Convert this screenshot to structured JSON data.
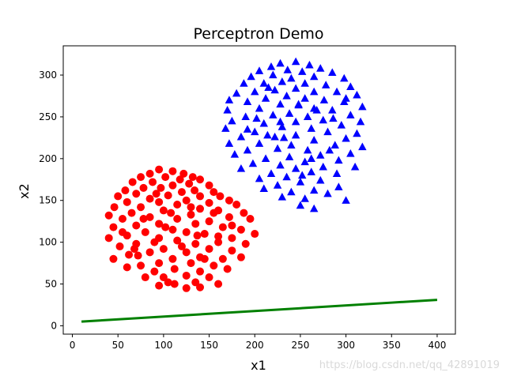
{
  "chart_data": {
    "type": "scatter",
    "title": "Perceptron Demo",
    "xlabel": "x1",
    "ylabel": "x2",
    "xlim": [
      -10,
      420
    ],
    "ylim": [
      -10,
      335
    ],
    "xticks": [
      0,
      50,
      100,
      150,
      200,
      250,
      300,
      350,
      400
    ],
    "yticks": [
      0,
      50,
      100,
      150,
      200,
      250,
      300
    ],
    "grid": false,
    "colors": {
      "class_red": "#ff0000",
      "class_blue": "#0000ff",
      "boundary": "#008000"
    },
    "series": [
      {
        "marker": "circle",
        "color": "#ff0000",
        "cluster": {
          "center": [
            115,
            117
          ],
          "radius": 72
        },
        "points": [
          [
            95,
            187
          ],
          [
            110,
            185
          ],
          [
            122,
            182
          ],
          [
            132,
            178
          ],
          [
            85,
            182
          ],
          [
            75,
            178
          ],
          [
            102,
            178
          ],
          [
            118,
            175
          ],
          [
            140,
            175
          ],
          [
            128,
            170
          ],
          [
            150,
            168
          ],
          [
            66,
            172
          ],
          [
            88,
            172
          ],
          [
            110,
            168
          ],
          [
            78,
            165
          ],
          [
            97,
            165
          ],
          [
            134,
            162
          ],
          [
            155,
            160
          ],
          [
            120,
            160
          ],
          [
            58,
            162
          ],
          [
            70,
            158
          ],
          [
            105,
            156
          ],
          [
            140,
            155
          ],
          [
            162,
            155
          ],
          [
            85,
            152
          ],
          [
            50,
            155
          ],
          [
            125,
            150
          ],
          [
            172,
            150
          ],
          [
            95,
            148
          ],
          [
            150,
            147
          ],
          [
            60,
            148
          ],
          [
            115,
            145
          ],
          [
            180,
            145
          ],
          [
            75,
            142
          ],
          [
            140,
            140
          ],
          [
            46,
            142
          ],
          [
            100,
            138
          ],
          [
            160,
            138
          ],
          [
            188,
            135
          ],
          [
            130,
            133
          ],
          [
            65,
            135
          ],
          [
            85,
            130
          ],
          [
            115,
            128
          ],
          [
            172,
            130
          ],
          [
            150,
            125
          ],
          [
            55,
            128
          ],
          [
            40,
            132
          ],
          [
            195,
            128
          ],
          [
            95,
            122
          ],
          [
            135,
            122
          ],
          [
            70,
            120
          ],
          [
            165,
            118
          ],
          [
            45,
            118
          ],
          [
            110,
            115
          ],
          [
            185,
            115
          ],
          [
            125,
            112
          ],
          [
            145,
            110
          ],
          [
            80,
            112
          ],
          [
            60,
            108
          ],
          [
            200,
            110
          ],
          [
            95,
            105
          ],
          [
            175,
            105
          ],
          [
            40,
            105
          ],
          [
            160,
            100
          ],
          [
            115,
            102
          ],
          [
            135,
            98
          ],
          [
            70,
            98
          ],
          [
            190,
            98
          ],
          [
            52,
            95
          ],
          [
            100,
            92
          ],
          [
            150,
            92
          ],
          [
            125,
            88
          ],
          [
            85,
            88
          ],
          [
            175,
            90
          ],
          [
            62,
            85
          ],
          [
            140,
            82
          ],
          [
            110,
            80
          ],
          [
            165,
            80
          ],
          [
            45,
            80
          ],
          [
            95,
            75
          ],
          [
            185,
            82
          ],
          [
            130,
            75
          ],
          [
            75,
            72
          ],
          [
            155,
            72
          ],
          [
            112,
            68
          ],
          [
            60,
            70
          ],
          [
            140,
            65
          ],
          [
            90,
            65
          ],
          [
            170,
            68
          ],
          [
            125,
            60
          ],
          [
            100,
            58
          ],
          [
            150,
            58
          ],
          [
            80,
            58
          ],
          [
            135,
            52
          ],
          [
            112,
            50
          ],
          [
            160,
            50
          ],
          [
            95,
            48
          ],
          [
            125,
            45
          ],
          [
            140,
            46
          ],
          [
            105,
            52
          ],
          [
            68,
            92
          ],
          [
            155,
            135
          ],
          [
            108,
            135
          ],
          [
            90,
            100
          ],
          [
            130,
            142
          ],
          [
            175,
            120
          ],
          [
            55,
            112
          ],
          [
            120,
            95
          ],
          [
            145,
            80
          ],
          [
            92,
            158
          ],
          [
            102,
            118
          ],
          [
            160,
            107
          ],
          [
            78,
            128
          ],
          [
            137,
            108
          ],
          [
            72,
            84
          ]
        ]
      },
      {
        "marker": "triangle",
        "color": "#0000ff",
        "cluster": {
          "center": [
            245,
            245
          ],
          "radius": 72
        },
        "points": [
          [
            245,
            316
          ],
          [
            228,
            314
          ],
          [
            260,
            312
          ],
          [
            218,
            310
          ],
          [
            272,
            308
          ],
          [
            236,
            306
          ],
          [
            252,
            304
          ],
          [
            205,
            305
          ],
          [
            285,
            303
          ],
          [
            220,
            300
          ],
          [
            265,
            298
          ],
          [
            240,
            296
          ],
          [
            196,
            298
          ],
          [
            298,
            296
          ],
          [
            230,
            292
          ],
          [
            255,
            290
          ],
          [
            210,
            290
          ],
          [
            278,
            288
          ],
          [
            188,
            290
          ],
          [
            305,
            286
          ],
          [
            245,
            284
          ],
          [
            222,
            282
          ],
          [
            265,
            280
          ],
          [
            200,
            280
          ],
          [
            290,
            280
          ],
          [
            180,
            278
          ],
          [
            312,
            276
          ],
          [
            235,
            275
          ],
          [
            255,
            272
          ],
          [
            212,
            272
          ],
          [
            276,
            270
          ],
          [
            192,
            268
          ],
          [
            298,
            268
          ],
          [
            172,
            270
          ],
          [
            228,
            265
          ],
          [
            248,
            264
          ],
          [
            318,
            262
          ],
          [
            265,
            260
          ],
          [
            205,
            260
          ],
          [
            285,
            258
          ],
          [
            170,
            258
          ],
          [
            238,
            254
          ],
          [
            220,
            252
          ],
          [
            305,
            252
          ],
          [
            258,
            250
          ],
          [
            190,
            250
          ],
          [
            275,
            246
          ],
          [
            175,
            245
          ],
          [
            316,
            244
          ],
          [
            245,
            244
          ],
          [
            210,
            242
          ],
          [
            295,
            240
          ],
          [
            230,
            238
          ],
          [
            262,
            236
          ],
          [
            168,
            236
          ],
          [
            200,
            232
          ],
          [
            280,
            232
          ],
          [
            312,
            230
          ],
          [
            245,
            228
          ],
          [
            222,
            226
          ],
          [
            185,
            226
          ],
          [
            300,
            224
          ],
          [
            265,
            222
          ],
          [
            205,
            218
          ],
          [
            172,
            218
          ],
          [
            240,
            216
          ],
          [
            288,
            216
          ],
          [
            318,
            214
          ],
          [
            225,
            212
          ],
          [
            258,
            210
          ],
          [
            192,
            210
          ],
          [
            305,
            206
          ],
          [
            178,
            205
          ],
          [
            272,
            204
          ],
          [
            238,
            202
          ],
          [
            212,
            200
          ],
          [
            292,
            198
          ],
          [
            255,
            196
          ],
          [
            198,
            194
          ],
          [
            228,
            192
          ],
          [
            275,
            190
          ],
          [
            245,
            188
          ],
          [
            310,
            190
          ],
          [
            185,
            188
          ],
          [
            262,
            184
          ],
          [
            218,
            182
          ],
          [
            290,
            182
          ],
          [
            235,
            178
          ],
          [
            205,
            176
          ],
          [
            272,
            174
          ],
          [
            250,
            172
          ],
          [
            225,
            168
          ],
          [
            292,
            166
          ],
          [
            210,
            164
          ],
          [
            265,
            162
          ],
          [
            240,
            160
          ],
          [
            280,
            158
          ],
          [
            230,
            154
          ],
          [
            255,
            152
          ],
          [
            300,
            150
          ],
          [
            250,
            144
          ],
          [
            265,
            140
          ],
          [
            252,
            180
          ],
          [
            232,
            225
          ],
          [
            268,
            258
          ],
          [
            202,
            248
          ],
          [
            282,
            210
          ],
          [
            215,
            285
          ],
          [
            300,
            272
          ],
          [
            192,
            235
          ],
          [
            248,
            265
          ],
          [
            262,
            200
          ],
          [
            228,
            244
          ],
          [
            286,
            248
          ],
          [
            214,
            228
          ]
        ]
      }
    ],
    "line": {
      "x": [
        10,
        400
      ],
      "y": [
        5,
        31
      ]
    }
  }
}
